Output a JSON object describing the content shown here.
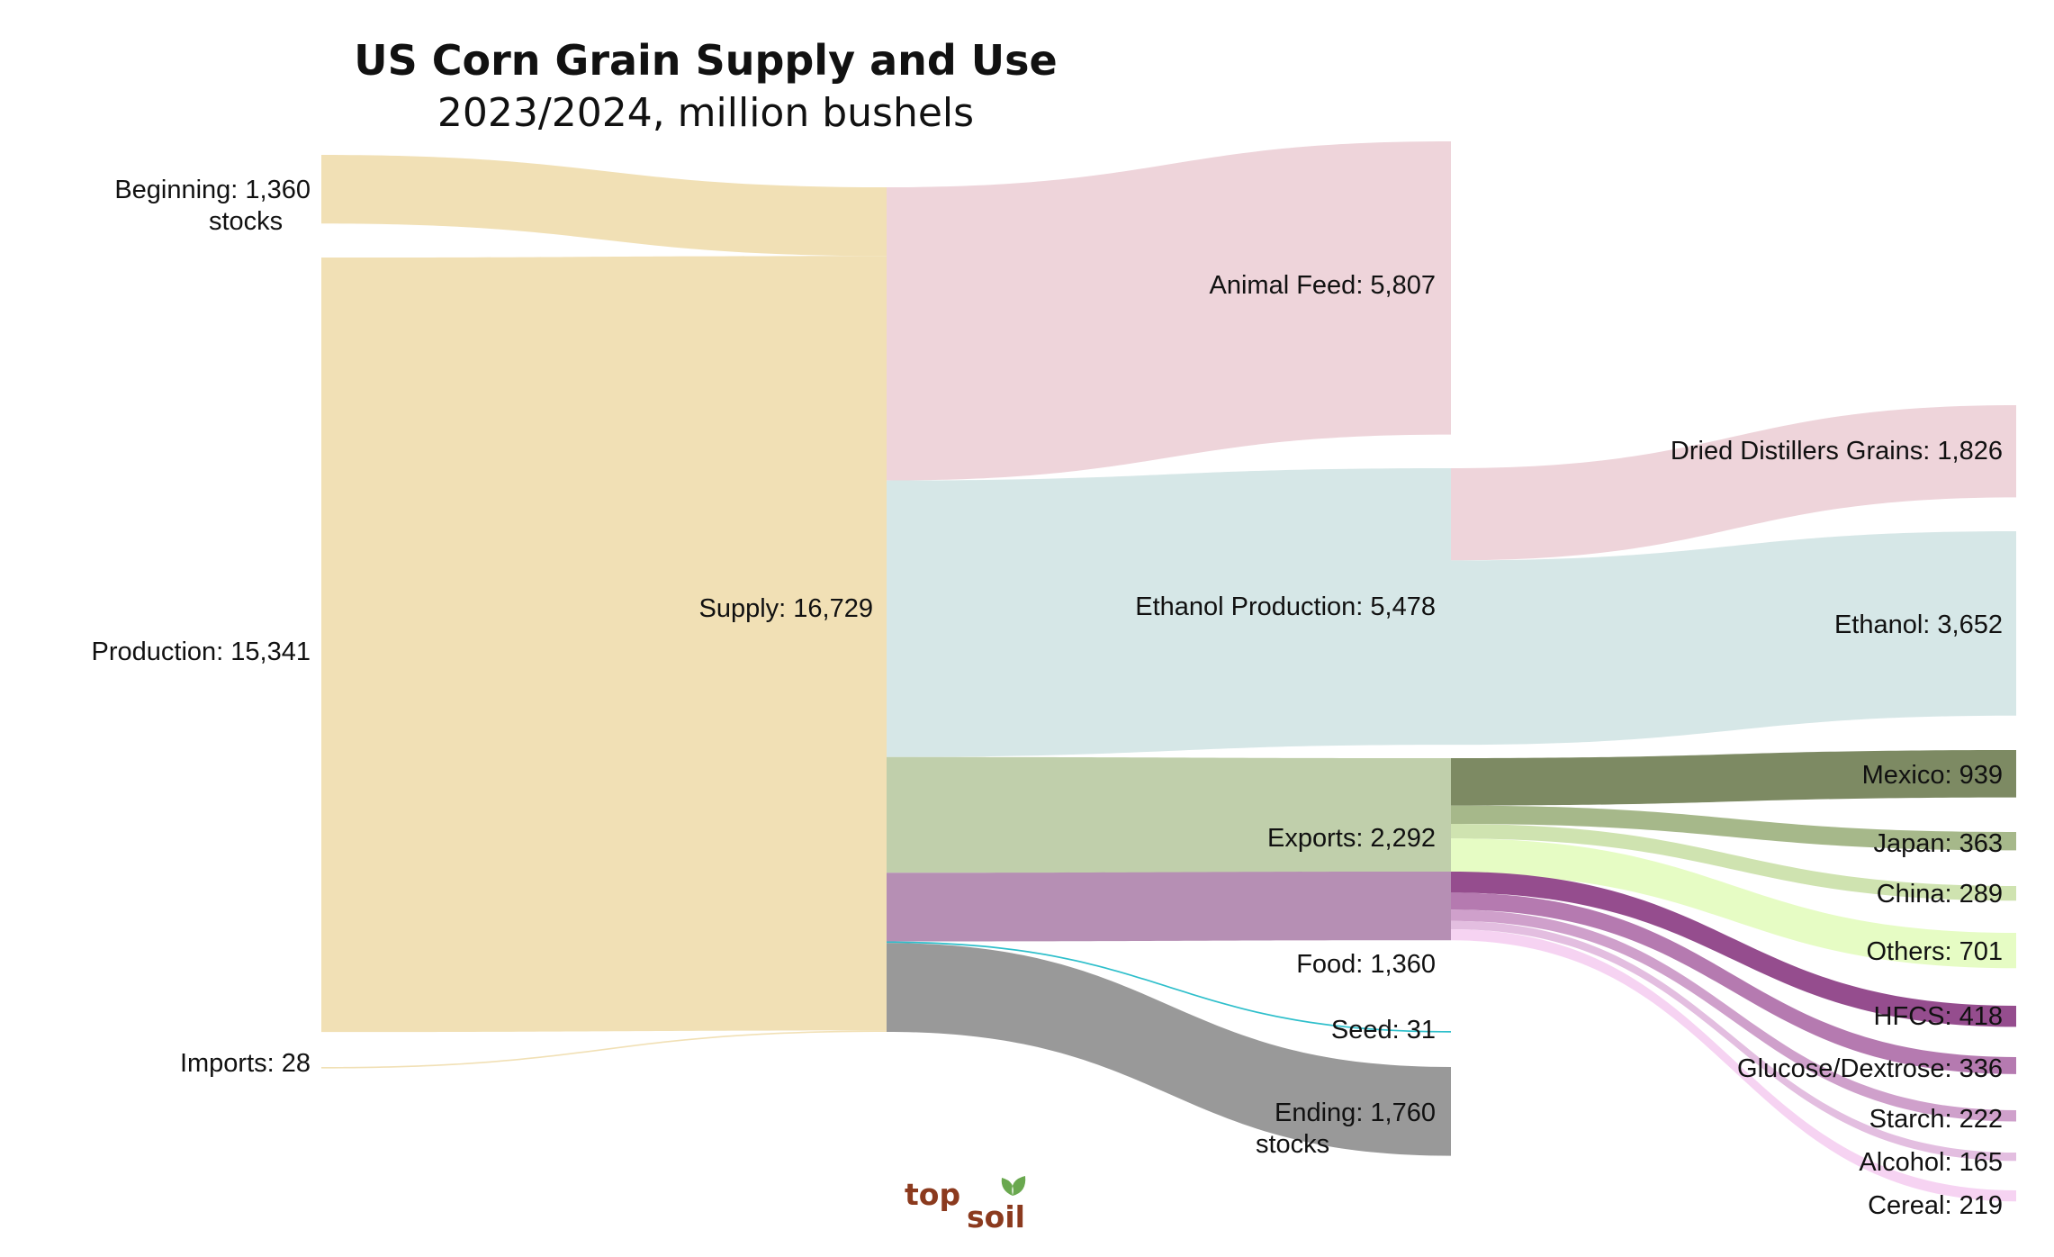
{
  "title": "US Corn Grain Supply and Use",
  "subtitle": "2023/2024, million bushels",
  "logo": {
    "part1": "top",
    "part2": "soil"
  },
  "colors": {
    "supply": "#f1e0b5",
    "feed": "#eed4da",
    "ethanol": "#d6e7e7",
    "exports": "#c0cfab",
    "food": "#b68fb4",
    "seed": "#2ebfcb",
    "ending": "#999999",
    "mexico": "#7d8a63",
    "japan": "#a6b88a",
    "china": "#cfe3b0",
    "others": "#e6fcc4",
    "hfcs": "#954d8e",
    "glucose": "#b57ab0",
    "starch": "#cfa0cb",
    "alcohol": "#e3bee0",
    "cereal": "#f6d3f2",
    "logo_brown": "#8b3a1e",
    "logo_leaf": "#6aa84f"
  },
  "chart_data": {
    "type": "sankey",
    "title": "US Corn Grain Supply and Use",
    "subtitle": "2023/2024, million bushels",
    "units": "million bushels",
    "nodes": [
      {
        "id": "beginning",
        "name": "Beginning stocks",
        "label": "Beginning: 1,360",
        "label2": "stocks",
        "value": 1360
      },
      {
        "id": "production",
        "name": "Production",
        "label": "Production: 15,341",
        "value": 15341
      },
      {
        "id": "imports",
        "name": "Imports",
        "label": "Imports: 28",
        "value": 28
      },
      {
        "id": "supply",
        "name": "Supply",
        "label": "Supply: 16,729",
        "value": 16729
      },
      {
        "id": "feed",
        "name": "Animal Feed",
        "label": "Animal Feed: 5,807",
        "value": 5807
      },
      {
        "id": "ethanol_prod",
        "name": "Ethanol Production",
        "label": "Ethanol Production: 5,478",
        "value": 5478
      },
      {
        "id": "exports",
        "name": "Exports",
        "label": "Exports: 2,292",
        "value": 2292
      },
      {
        "id": "food",
        "name": "Food",
        "label": "Food: 1,360",
        "value": 1360
      },
      {
        "id": "seed",
        "name": "Seed",
        "label": "Seed: 31",
        "value": 31
      },
      {
        "id": "ending",
        "name": "Ending stocks",
        "label": "Ending: 1,760",
        "label2": "stocks",
        "value": 1760
      },
      {
        "id": "ddg",
        "name": "Dried Distillers Grains",
        "label": "Dried Distillers Grains: 1,826",
        "value": 1826
      },
      {
        "id": "ethanol",
        "name": "Ethanol",
        "label": "Ethanol: 3,652",
        "value": 3652
      },
      {
        "id": "mexico",
        "name": "Mexico",
        "label": "Mexico: 939",
        "value": 939
      },
      {
        "id": "japan",
        "name": "Japan",
        "label": "Japan: 363",
        "value": 363
      },
      {
        "id": "china",
        "name": "China",
        "label": "China: 289",
        "value": 289
      },
      {
        "id": "others",
        "name": "Others",
        "label": "Others: 701",
        "value": 701
      },
      {
        "id": "hfcs",
        "name": "HFCS",
        "label": "HFCS: 418",
        "value": 418
      },
      {
        "id": "glucose",
        "name": "Glucose/Dextrose",
        "label": "Glucose/Dextrose: 336",
        "value": 336
      },
      {
        "id": "starch",
        "name": "Starch",
        "label": "Starch: 222",
        "value": 222
      },
      {
        "id": "alcohol",
        "name": "Alcohol",
        "label": "Alcohol: 165",
        "value": 165
      },
      {
        "id": "cereal",
        "name": "Cereal",
        "label": "Cereal: 219",
        "value": 219
      }
    ],
    "links": [
      {
        "source": "beginning",
        "target": "supply",
        "value": 1360,
        "color": "supply"
      },
      {
        "source": "production",
        "target": "supply",
        "value": 15341,
        "color": "supply"
      },
      {
        "source": "imports",
        "target": "supply",
        "value": 28,
        "color": "supply"
      },
      {
        "source": "supply",
        "target": "feed",
        "value": 5807,
        "color": "feed"
      },
      {
        "source": "supply",
        "target": "ethanol_prod",
        "value": 5478,
        "color": "ethanol"
      },
      {
        "source": "supply",
        "target": "exports",
        "value": 2292,
        "color": "exports"
      },
      {
        "source": "supply",
        "target": "food",
        "value": 1360,
        "color": "food"
      },
      {
        "source": "supply",
        "target": "seed",
        "value": 31,
        "color": "seed"
      },
      {
        "source": "supply",
        "target": "ending",
        "value": 1760,
        "color": "ending"
      },
      {
        "source": "ethanol_prod",
        "target": "ddg",
        "value": 1826,
        "color": "feed"
      },
      {
        "source": "ethanol_prod",
        "target": "ethanol",
        "value": 3652,
        "color": "ethanol"
      },
      {
        "source": "exports",
        "target": "mexico",
        "value": 939,
        "color": "mexico"
      },
      {
        "source": "exports",
        "target": "japan",
        "value": 363,
        "color": "japan"
      },
      {
        "source": "exports",
        "target": "china",
        "value": 289,
        "color": "china"
      },
      {
        "source": "exports",
        "target": "others",
        "value": 701,
        "color": "others"
      },
      {
        "source": "food",
        "target": "hfcs",
        "value": 418,
        "color": "hfcs"
      },
      {
        "source": "food",
        "target": "glucose",
        "value": 336,
        "color": "glucose"
      },
      {
        "source": "food",
        "target": "starch",
        "value": 222,
        "color": "starch"
      },
      {
        "source": "food",
        "target": "alcohol",
        "value": 165,
        "color": "alcohol"
      },
      {
        "source": "food",
        "target": "cereal",
        "value": 219,
        "color": "cereal"
      }
    ]
  }
}
